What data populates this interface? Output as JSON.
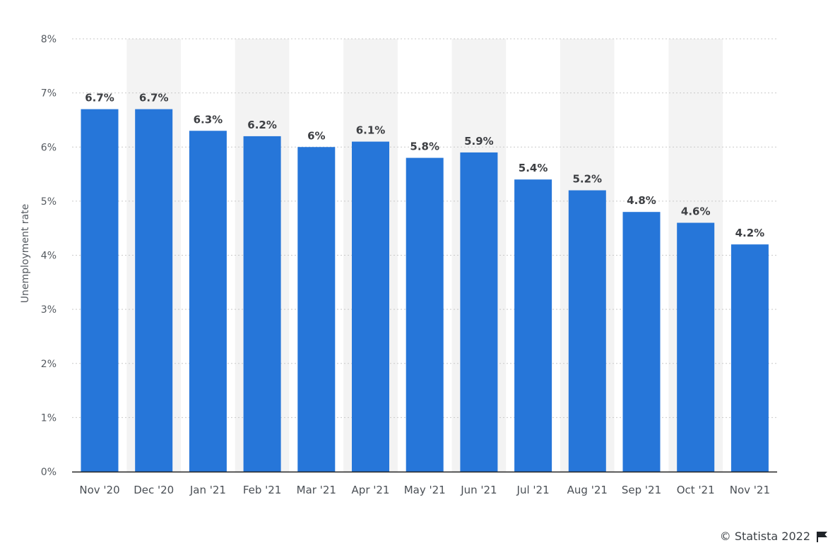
{
  "chart_data": {
    "type": "bar",
    "categories": [
      "Nov '20",
      "Dec '20",
      "Jan '21",
      "Feb '21",
      "Mar '21",
      "Apr '21",
      "May '21",
      "Jun '21",
      "Jul '21",
      "Aug '21",
      "Sep '21",
      "Oct '21",
      "Nov '21"
    ],
    "values": [
      6.7,
      6.7,
      6.3,
      6.2,
      6,
      6.1,
      5.8,
      5.9,
      5.4,
      5.2,
      4.8,
      4.6,
      4.2
    ],
    "data_labels": [
      "6.7%",
      "6.7%",
      "6.3%",
      "6.2%",
      "6%",
      "6.1%",
      "5.8%",
      "5.9%",
      "5.4%",
      "5.2%",
      "4.8%",
      "4.6%",
      "4.2%"
    ],
    "ylabel": "Unemployment rate",
    "ylim": [
      0,
      8
    ],
    "yticks": [
      "0%",
      "1%",
      "2%",
      "3%",
      "4%",
      "5%",
      "6%",
      "7%",
      "8%"
    ],
    "grid": true,
    "alternating_column_shading": true,
    "colors": {
      "bar": "#2676d9",
      "shade": "#f3f3f3",
      "grid": "#c9c9c9",
      "axis": "#222222"
    }
  },
  "footer": {
    "credit": "© Statista 2022",
    "flag_icon": "flag-icon"
  }
}
